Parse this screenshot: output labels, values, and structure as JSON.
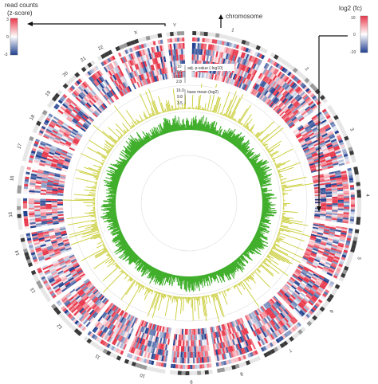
{
  "legend_left": {
    "title_line1": "read counts",
    "title_line2": "(z-score)",
    "ticks": [
      "3",
      "0",
      "-3"
    ],
    "colors": {
      "high": "#e8364a",
      "mid": "#ffffff",
      "low": "#1f3f8f"
    }
  },
  "legend_right": {
    "title": "log2 (fc)",
    "ticks": [
      "10",
      "0",
      "-10"
    ],
    "colors": {
      "high": "#e8364a",
      "mid": "#ffffff",
      "low": "#1f3f8f"
    }
  },
  "callouts": {
    "chromosome": "chromosome",
    "padj": "adj. p-value (-log10)",
    "padj_ticks": [
      "10",
      "7.6",
      "5.2",
      "2.8"
    ],
    "basemean": "base mean (log2)",
    "basemean_ticks": [
      "16.0",
      "9.8",
      "3.5"
    ]
  },
  "chromosome_labels": [
    "1",
    "2",
    "3",
    "4",
    "5",
    "6",
    "7",
    "8",
    "9",
    "10",
    "11",
    "12",
    "13",
    "14",
    "15",
    "16",
    "17",
    "18",
    "19",
    "20",
    "21",
    "22",
    "X",
    "Y"
  ],
  "colors": {
    "heat_high": "#e8364a",
    "heat_low": "#1f3f8f",
    "pvalue_track": "#c8cc33",
    "basemean_track": "#3fae2a",
    "ideogram_dark": "#3a3a3a",
    "arrow": "#111111"
  }
}
